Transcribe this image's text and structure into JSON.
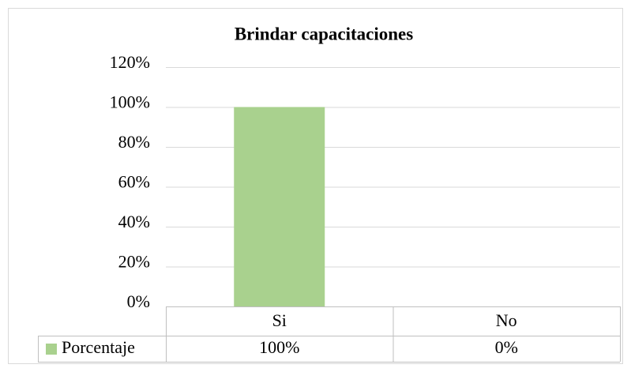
{
  "chart_data": {
    "type": "bar",
    "title": "Brindar capacitaciones",
    "categories": [
      "Si",
      "No"
    ],
    "series": [
      {
        "name": "Porcentaje",
        "color": "#a9d18e",
        "values": [
          100,
          0
        ],
        "value_labels": [
          "100%",
          "0%"
        ]
      }
    ],
    "ylim": [
      0,
      120
    ],
    "yticks": [
      {
        "value": 0,
        "label": "0%"
      },
      {
        "value": 20,
        "label": "20%"
      },
      {
        "value": 40,
        "label": "40%"
      },
      {
        "value": 60,
        "label": "60%"
      },
      {
        "value": 80,
        "label": "80%"
      },
      {
        "value": 100,
        "label": "100%"
      },
      {
        "value": 120,
        "label": "120%"
      }
    ],
    "grid": true,
    "data_table": true
  }
}
